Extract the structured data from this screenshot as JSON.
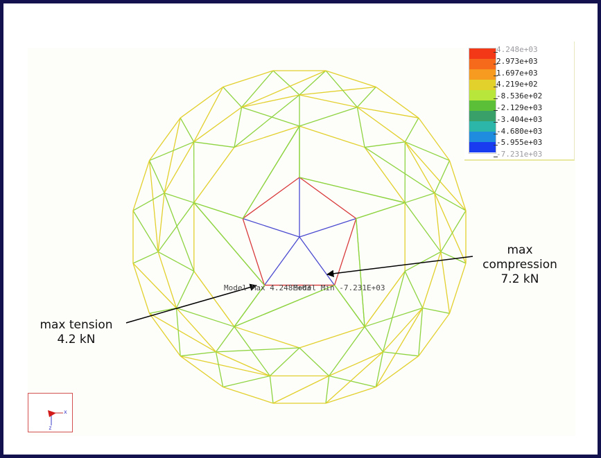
{
  "legend": {
    "values": [
      "4.248e+03",
      "2.973e+03",
      "1.697e+03",
      "4.219e+02",
      "-8.536e+02",
      "-2.129e+03",
      "-3.404e+03",
      "-4.680e+03",
      "-5.955e+03",
      "-7.231e+03"
    ],
    "colors": [
      "#f33818",
      "#f66a1c",
      "#f79a20",
      "#e2d02c",
      "#b8e63a",
      "#5cbf38",
      "#3aa06a",
      "#2cb6aa",
      "#208ce0",
      "#1a3cf0"
    ]
  },
  "model_labels": {
    "max": "Model Max 4.248E+03",
    "min": "Model Min -7.231E+03"
  },
  "callouts": {
    "tension_line1": "max tension",
    "tension_line2": "4.2 kN",
    "compression_line1": "max",
    "compression_line2": "compression",
    "compression_line3": "7.2 kN"
  },
  "triad": {
    "x_label": "x",
    "z_label": "z"
  },
  "colors": {
    "frame": "#13124f",
    "member_yellow": "#e2d02c",
    "member_green": "#8ed440",
    "member_red": "#d83a3a",
    "member_blue": "#4a4ad0"
  }
}
